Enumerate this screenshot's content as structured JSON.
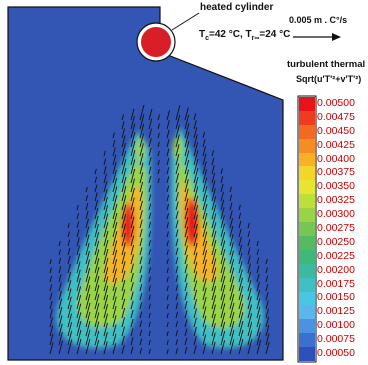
{
  "figure": {
    "title": "heated cylinder",
    "condition": "Tc=42 °C, T∞=24 °C",
    "condition_parts": {
      "t1": "T",
      "s1": "c",
      "v1": "=42 °C, T",
      "s2": "r∞",
      "v2": "=24 °C"
    },
    "reference_vector": "0.005 m . C°/s",
    "colorbar_title": "turbulent thermal fl",
    "colorbar_formula": "Sqrt(u'T'²+v'T'²)"
  },
  "colorbar": {
    "ticks": [
      "0.00500",
      "0.00475",
      "0.00450",
      "0.00425",
      "0.00400",
      "0.00375",
      "0.00350",
      "0.00325",
      "0.00300",
      "0.00275",
      "0.00250",
      "0.00225",
      "0.00200",
      "0.00175",
      "0.00150",
      "0.00125",
      "0.00100",
      "0.00075",
      "0.00050"
    ],
    "colors": [
      "#e8141a",
      "#f03c1e",
      "#f26a21",
      "#f58d22",
      "#f7b325",
      "#f4d52a",
      "#e6e632",
      "#bede3a",
      "#9ad446",
      "#74c752",
      "#55bb62",
      "#3fb87a",
      "#3cbaa0",
      "#40bfc4",
      "#49c6e3",
      "#5cb6ee",
      "#4b93e1",
      "#3a70cf",
      "#2e50bc"
    ]
  },
  "colors": {
    "background_field": "#3355b4",
    "cylinder": "#d81e26",
    "tick_text": "#c80000"
  }
}
